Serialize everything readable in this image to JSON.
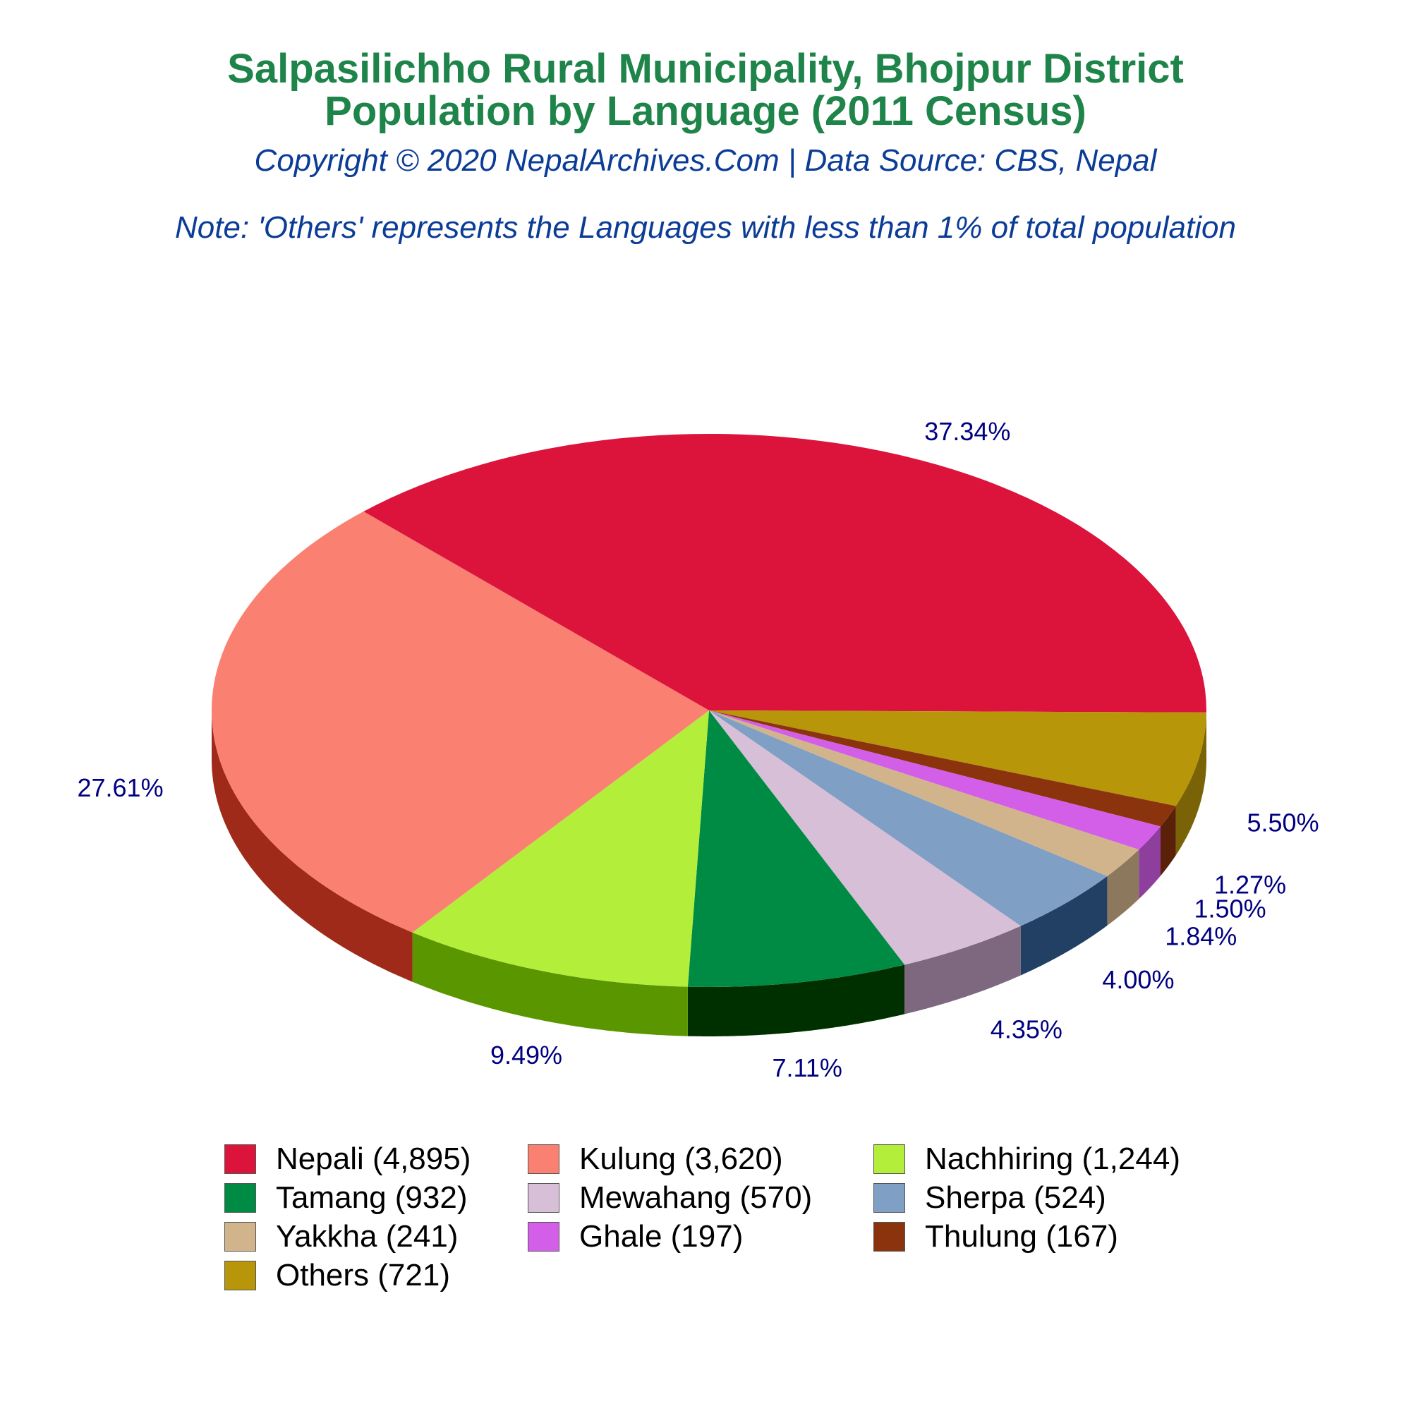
{
  "title": "Salpasilichho Rural Municipality, Bhojpur District",
  "title_line2": "Population by Language (2011 Census)",
  "subtitle": "Copyright © 2020 NepalArchives.Com | Data Source: CBS, Nepal",
  "note": "Note: 'Others' represents the Languages with less than 1% of total population",
  "chart_data": {
    "type": "pie",
    "style": "3d",
    "slices": [
      {
        "label": "Nepali",
        "legend": "Nepali (4,895)",
        "value": 4895,
        "percent_label": "37.34%",
        "color": "#dc143c",
        "side_color": "#9f2a1a"
      },
      {
        "label": "Others",
        "legend": "Others (721)",
        "value": 721,
        "percent_label": "5.50%",
        "color": "#b8960a",
        "side_color": "#7a6206"
      },
      {
        "label": "Thulung",
        "legend": "Thulung (167)",
        "value": 167,
        "percent_label": "1.27%",
        "color": "#8b330d",
        "side_color": "#5a2008"
      },
      {
        "label": "Ghale",
        "legend": "Ghale (197)",
        "value": 197,
        "percent_label": "1.50%",
        "color": "#d35ee8",
        "side_color": "#8e3e9c"
      },
      {
        "label": "Yakkha",
        "legend": "Yakkha (241)",
        "value": 241,
        "percent_label": "1.84%",
        "color": "#d2b48c",
        "side_color": "#8c785c"
      },
      {
        "label": "Sherpa",
        "legend": "Sherpa (524)",
        "value": 524,
        "percent_label": "4.00%",
        "color": "#7f9fc4",
        "side_color": "#223f64"
      },
      {
        "label": "Mewahang",
        "legend": "Mewahang (570)",
        "value": 570,
        "percent_label": "4.35%",
        "color": "#d8bfd8",
        "side_color": "#7e6880"
      },
      {
        "label": "Tamang",
        "legend": "Tamang (932)",
        "value": 932,
        "percent_label": "7.11%",
        "color": "#008b45",
        "side_color": "#003000"
      },
      {
        "label": "Nachhiring",
        "legend": "Nachhiring (1,244)",
        "value": 1244,
        "percent_label": "9.49%",
        "color": "#b3ee3a",
        "side_color": "#5a9600"
      },
      {
        "label": "Kulung",
        "legend": "Kulung (3,620)",
        "value": 3620,
        "percent_label": "27.61%",
        "color": "#fa8072",
        "side_color": "#9f2a1a"
      }
    ],
    "legend_order": [
      "Nepali",
      "Kulung",
      "Nachhiring",
      "Tamang",
      "Mewahang",
      "Sherpa",
      "Yakkha",
      "Ghale",
      "Thulung",
      "Others"
    ],
    "legend_placement": "bottom",
    "label_color": "#000080"
  }
}
